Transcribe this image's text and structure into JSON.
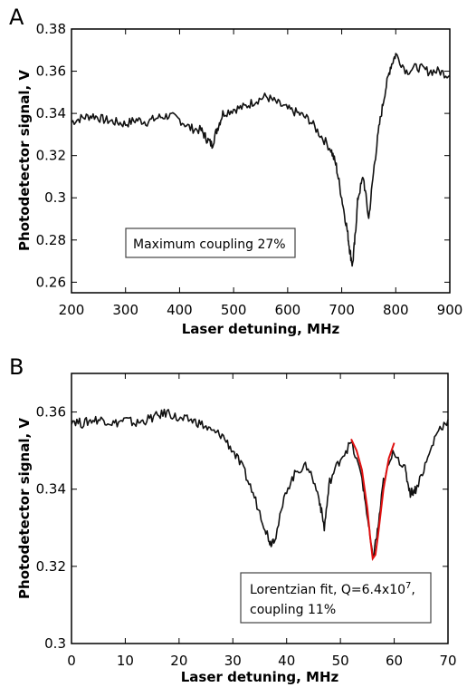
{
  "chart_data": [
    {
      "panel": "A",
      "type": "line",
      "xlabel": "Laser detuning, MHz",
      "ylabel": "Photodetector signal, V",
      "xlim": [
        200,
        900
      ],
      "ylim": [
        0.255,
        0.38
      ],
      "xticks": [
        "200",
        "300",
        "400",
        "500",
        "600",
        "700",
        "800",
        "900"
      ],
      "xtick_values": [
        200,
        300,
        400,
        500,
        600,
        700,
        800,
        900
      ],
      "yticks": [
        "0.26",
        "0.28",
        "0.3",
        "0.32",
        "0.34",
        "0.36",
        "0.38"
      ],
      "ytick_values": [
        0.26,
        0.28,
        0.3,
        0.32,
        0.34,
        0.36,
        0.38
      ],
      "annotation": "Maximum coupling 27%",
      "grid": false,
      "series": [
        {
          "x": [
            200,
            220,
            240,
            260,
            280,
            300,
            320,
            340,
            360,
            380,
            400,
            420,
            440,
            450,
            460,
            470,
            480,
            500,
            520,
            540,
            560,
            580,
            600,
            620,
            640,
            660,
            680,
            690,
            700,
            710,
            715,
            720,
            725,
            730,
            740,
            750,
            760,
            770,
            780,
            790,
            800,
            820,
            840,
            860,
            880,
            900
          ],
          "y": [
            0.336,
            0.338,
            0.339,
            0.337,
            0.336,
            0.335,
            0.337,
            0.336,
            0.338,
            0.339,
            0.337,
            0.333,
            0.332,
            0.328,
            0.325,
            0.333,
            0.34,
            0.342,
            0.343,
            0.346,
            0.348,
            0.345,
            0.342,
            0.34,
            0.337,
            0.33,
            0.323,
            0.315,
            0.3,
            0.285,
            0.275,
            0.268,
            0.282,
            0.3,
            0.31,
            0.29,
            0.315,
            0.335,
            0.35,
            0.362,
            0.368,
            0.36,
            0.362,
            0.36,
            0.36,
            0.358
          ]
        }
      ]
    },
    {
      "panel": "B",
      "type": "line",
      "xlabel": "Laser detuning, MHz",
      "ylabel": "Photodetector signal, V",
      "xlim": [
        0,
        70
      ],
      "ylim": [
        0.3,
        0.37
      ],
      "xticks": [
        "0",
        "10",
        "20",
        "30",
        "40",
        "50",
        "60",
        "70"
      ],
      "xtick_values": [
        0,
        10,
        20,
        30,
        40,
        50,
        60,
        70
      ],
      "yticks": [
        "0.3",
        "0.32",
        "0.34",
        "0.36"
      ],
      "ytick_values": [
        0.3,
        0.32,
        0.34,
        0.36
      ],
      "annotation_main": "Lorentzian fit, Q=6.4x10",
      "annotation_sup": "7",
      "annotation_tail": ",",
      "annotation_line2": "coupling 11%",
      "grid": false,
      "fit_color": "#e01010",
      "series": [
        {
          "x": [
            0,
            2,
            4,
            6,
            8,
            10,
            12,
            14,
            16,
            18,
            20,
            22,
            24,
            26,
            28,
            30,
            32,
            34,
            36,
            37,
            38,
            40,
            42,
            44,
            46,
            47,
            48,
            50,
            52,
            54,
            55,
            56,
            57,
            58,
            60,
            62,
            63,
            64,
            66,
            68,
            70
          ],
          "y": [
            0.358,
            0.357,
            0.358,
            0.358,
            0.357,
            0.358,
            0.357,
            0.358,
            0.359,
            0.36,
            0.358,
            0.358,
            0.357,
            0.355,
            0.354,
            0.35,
            0.345,
            0.338,
            0.33,
            0.326,
            0.328,
            0.34,
            0.345,
            0.346,
            0.338,
            0.33,
            0.342,
            0.348,
            0.352,
            0.343,
            0.333,
            0.322,
            0.33,
            0.342,
            0.35,
            0.345,
            0.339,
            0.34,
            0.347,
            0.355,
            0.358
          ]
        }
      ],
      "fit": {
        "x": [
          52.0,
          53.0,
          54.0,
          55.0,
          55.5,
          56.0,
          56.5,
          57.0,
          57.5,
          58.0,
          59.0,
          60.0
        ],
        "y": [
          0.353,
          0.35,
          0.345,
          0.335,
          0.328,
          0.322,
          0.323,
          0.328,
          0.334,
          0.34,
          0.348,
          0.352
        ]
      }
    }
  ]
}
